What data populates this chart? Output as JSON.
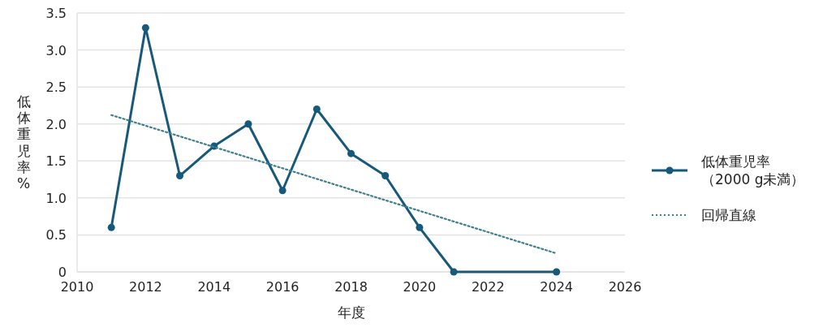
{
  "chart_data": {
    "type": "line",
    "xlabel": "年度",
    "ylabel": "低体重児率%",
    "xlim": [
      2010,
      2026
    ],
    "xticks": [
      2010,
      2012,
      2014,
      2016,
      2018,
      2020,
      2022,
      2024,
      2026
    ],
    "ylim": [
      0,
      3.5
    ],
    "yticks": [
      {
        "value": 0,
        "label": "0"
      },
      {
        "value": 0.5,
        "label": "0.5"
      },
      {
        "value": 1,
        "label": "1.0"
      },
      {
        "value": 1.5,
        "label": "1.5"
      },
      {
        "value": 2,
        "label": "2.0"
      },
      {
        "value": 2.5,
        "label": "2.5"
      },
      {
        "value": 3,
        "label": "3.0"
      },
      {
        "value": 3.5,
        "label": "3.5"
      }
    ],
    "grid": "y",
    "legend": "right",
    "series": [
      {
        "name": "低体重児率（2000 g未満）",
        "color": "#17597a",
        "x": [
          2011,
          2012,
          2013,
          2014,
          2015,
          2016,
          2017,
          2018,
          2019,
          2020,
          2021,
          2024
        ],
        "values": [
          0.6,
          3.3,
          1.3,
          1.7,
          2.0,
          1.1,
          2.2,
          1.6,
          1.3,
          0.6,
          0,
          0
        ],
        "marker": "circle",
        "line_style": "solid"
      },
      {
        "name": "回帰直線",
        "type": "line",
        "color": "#3d7f8c",
        "x": [
          2011,
          2024
        ],
        "values": [
          2.12,
          0.25
        ],
        "marker": "none",
        "line_style": "dotted"
      }
    ]
  }
}
